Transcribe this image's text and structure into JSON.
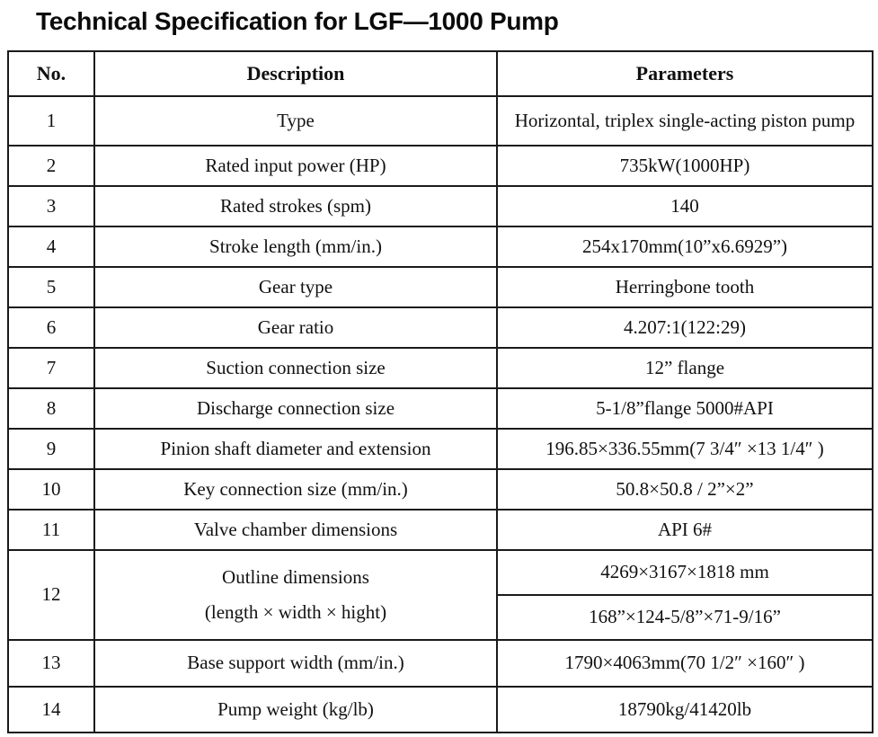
{
  "title": "Technical Specification for LGF—1000 Pump",
  "table": {
    "headers": {
      "no": "No.",
      "description": "Description",
      "parameters": "Parameters"
    },
    "rows": [
      {
        "no": "1",
        "description": "Type",
        "parameters": "Horizontal, triplex single-acting piston pump"
      },
      {
        "no": "2",
        "description": "Rated input power (HP)",
        "parameters": "735kW(1000HP)"
      },
      {
        "no": "3",
        "description": "Rated strokes (spm)",
        "parameters": "140"
      },
      {
        "no": "4",
        "description": "Stroke length (mm/in.)",
        "parameters": "254x170mm(10”x6.6929”)"
      },
      {
        "no": "5",
        "description": "Gear type",
        "parameters": "Herringbone tooth"
      },
      {
        "no": "6",
        "description": "Gear ratio",
        "parameters": "4.207:1(122:29)"
      },
      {
        "no": "7",
        "description": "Suction connection size",
        "parameters": "12” flange"
      },
      {
        "no": "8",
        "description": "Discharge connection size",
        "parameters": "5-1/8”flange 5000#API"
      },
      {
        "no": "9",
        "description": "Pinion shaft diameter and extension",
        "parameters": "196.85×336.55mm(7 3/4″ ×13 1/4″ )"
      },
      {
        "no": "10",
        "description": "Key connection size (mm/in.)",
        "parameters": "50.8×50.8 / 2”×2”"
      },
      {
        "no": "11",
        "description": "Valve chamber dimensions",
        "parameters": "API 6#"
      },
      {
        "no": "12",
        "description_line1": "Outline dimensions",
        "description_line2": "(length × width × hight)",
        "parameters_sub": [
          "4269×3167×1818 mm",
          "168”×124-5/8”×71-9/16”"
        ]
      },
      {
        "no": "13",
        "description": "Base support width (mm/in.)",
        "parameters": "1790×4063mm(70 1/2″ ×160″ )"
      },
      {
        "no": "14",
        "description": "Pump weight (kg/lb)",
        "parameters": "18790kg/41420lb"
      }
    ]
  }
}
